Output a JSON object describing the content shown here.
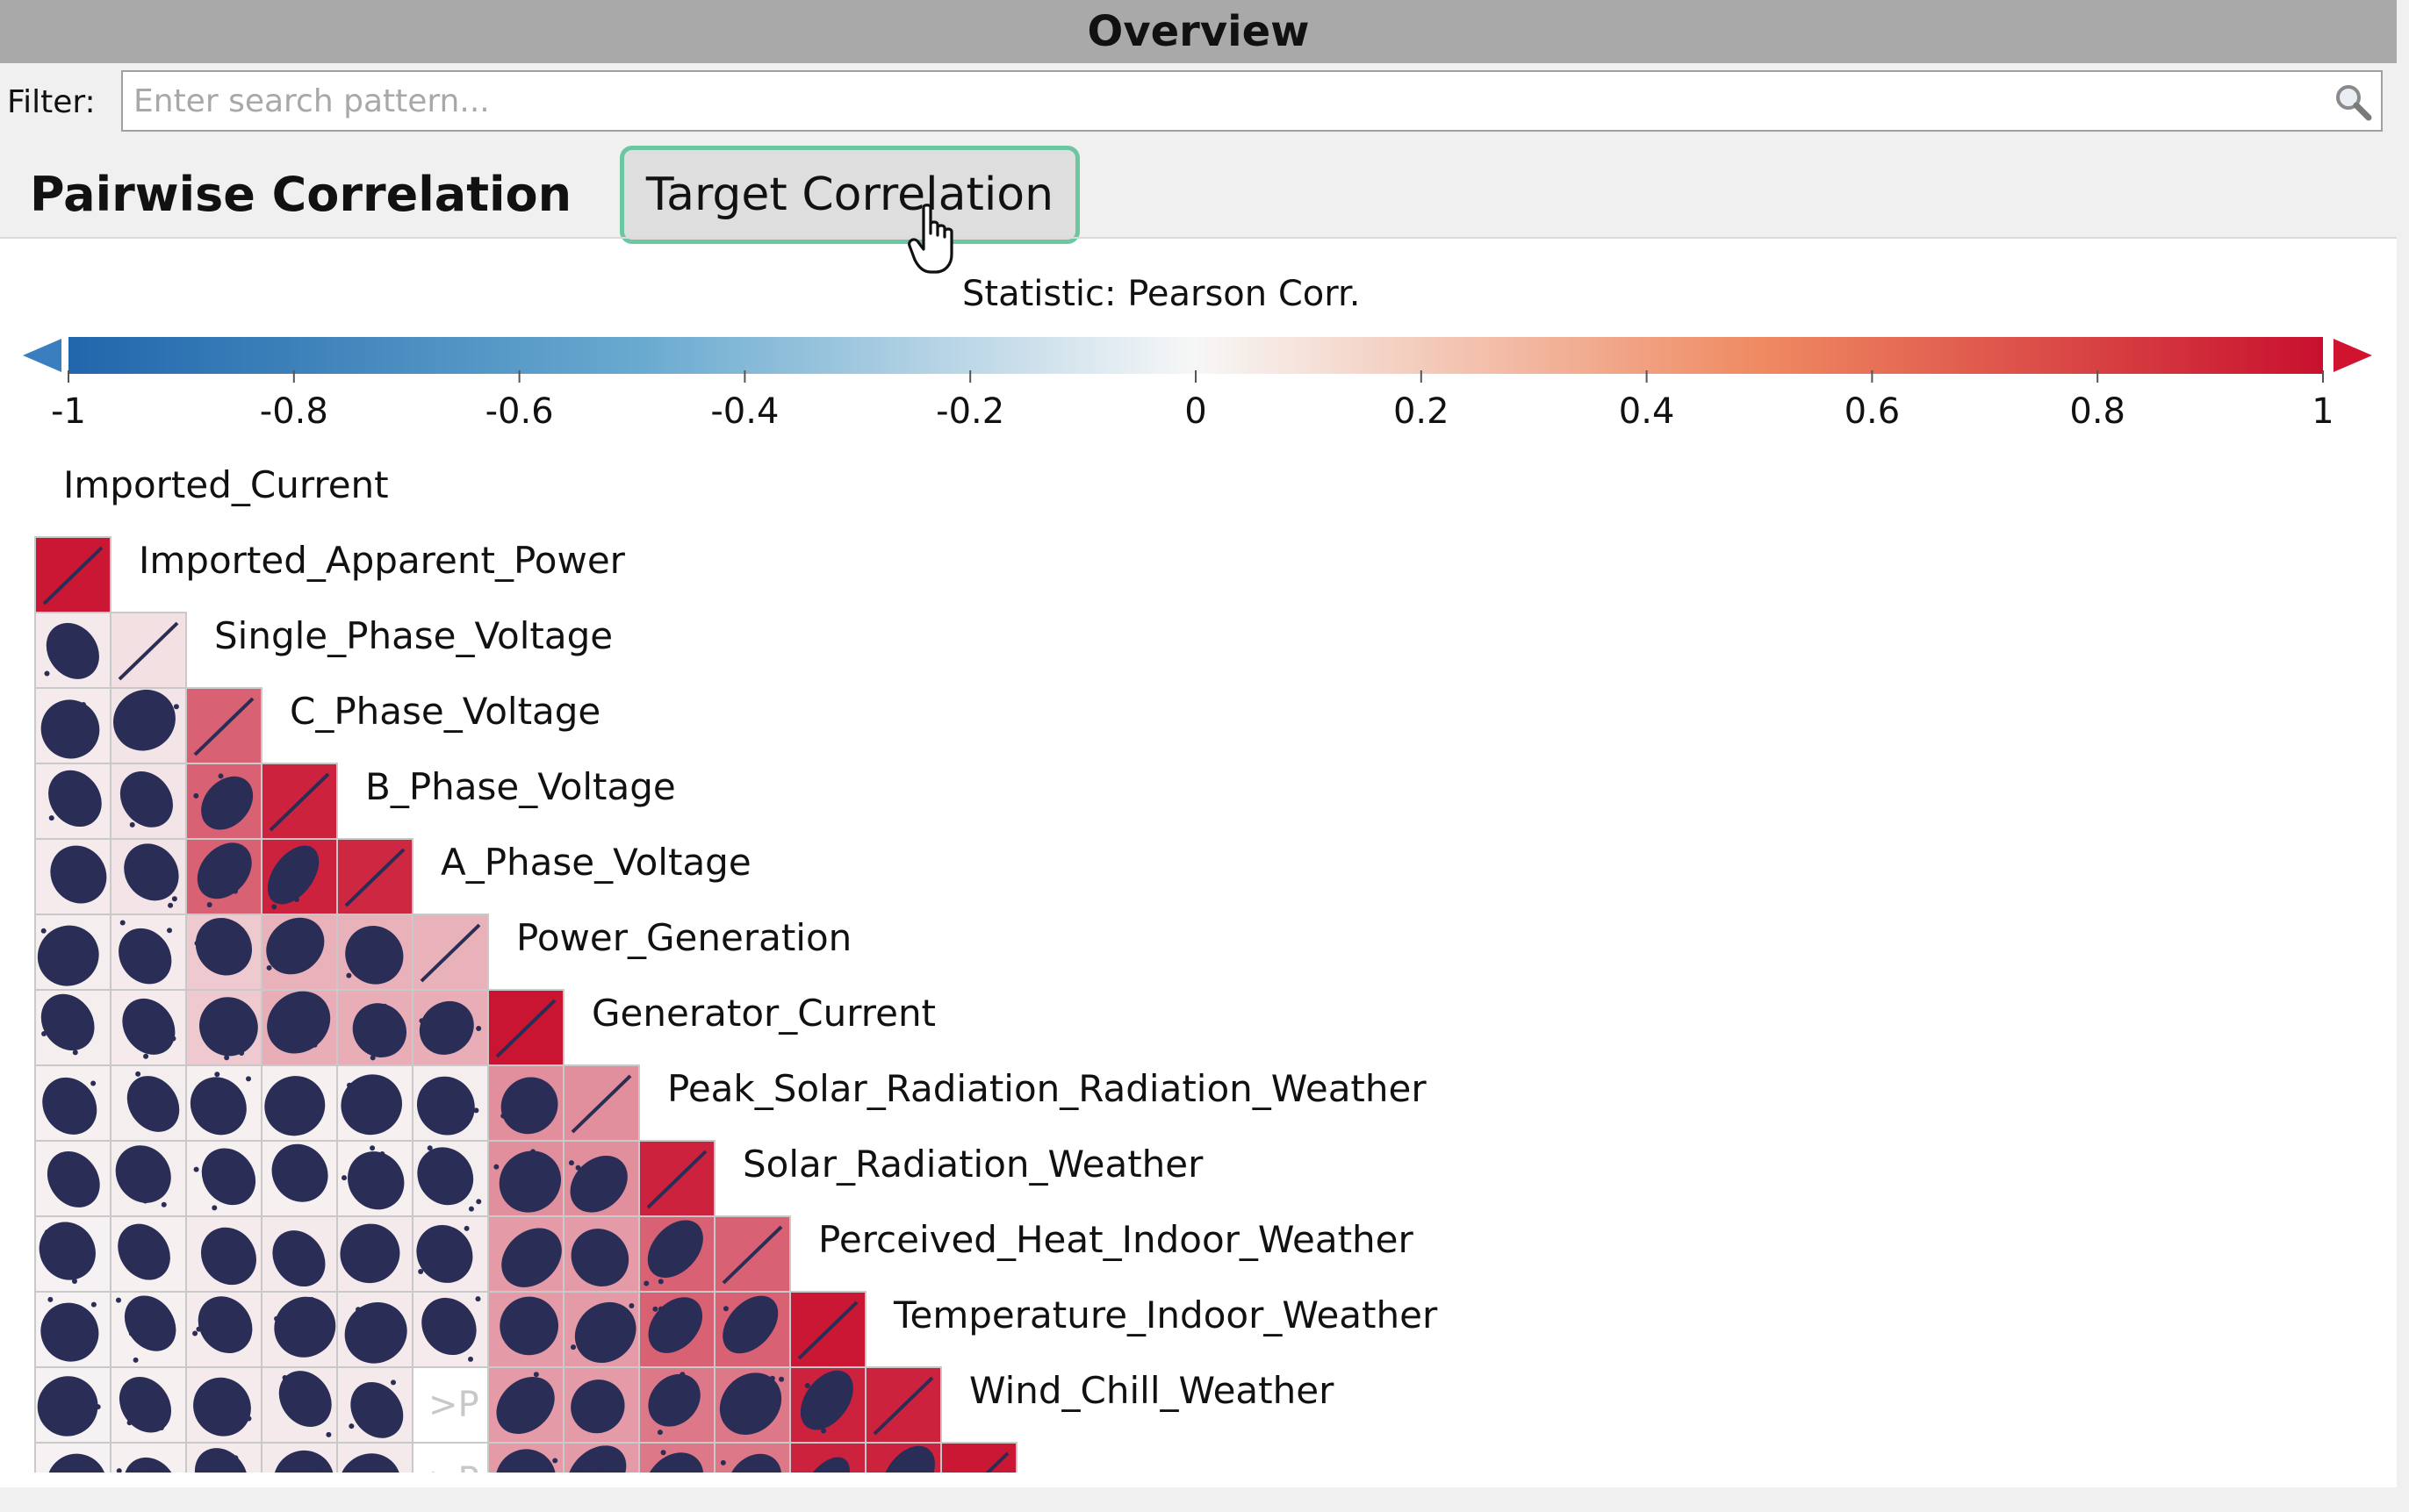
{
  "window": {
    "title": "Overview"
  },
  "filter": {
    "label": "Filter:",
    "placeholder": "Enter search pattern..."
  },
  "tabs": {
    "pairwise": "Pairwise Correlation",
    "target": "Target Correlation",
    "active": "Target Correlation"
  },
  "statistic_label": "Statistic: Pearson Corr.",
  "colorbar": {
    "min": -1,
    "max": 1,
    "ticks": [
      "-1",
      "-0.8",
      "-0.6",
      "-0.4",
      "-0.2",
      "0",
      "0.2",
      "0.4",
      "0.6",
      "0.8",
      "1"
    ],
    "colors": {
      "negative": "#2166ac",
      "neutral": "#f7f7f7",
      "positive": "#c8102e"
    }
  },
  "variables": [
    "Imported_Current",
    "Imported_Apparent_Power",
    "Single_Phase_Voltage",
    "C_Phase_Voltage",
    "B_Phase_Voltage",
    "A_Phase_Voltage",
    "Power_Generation",
    "Generator_Current",
    "Peak_Solar_Radiation_Radiation_Weather",
    "Solar_Radiation_Weather",
    "Perceived_Heat_Indoor_Weather",
    "Temperature_Indoor_Weather",
    "Wind_Chill_Weather"
  ],
  "matrix_rows": [
    [
      0.97
    ],
    [
      0.06,
      0.1
    ],
    [
      0.05,
      0.08,
      0.65
    ],
    [
      0.05,
      0.08,
      0.65,
      0.92
    ],
    [
      0.05,
      0.08,
      0.65,
      0.92,
      0.9
    ],
    [
      0.04,
      0.05,
      0.2,
      0.3,
      0.3,
      0.3
    ],
    [
      0.04,
      0.05,
      0.2,
      0.32,
      0.32,
      0.32,
      0.98
    ],
    [
      0.03,
      0.04,
      0.03,
      0.03,
      0.03,
      0.04,
      0.45,
      0.45
    ],
    [
      0.03,
      0.04,
      0.03,
      0.03,
      0.03,
      0.04,
      0.45,
      0.45,
      0.92
    ],
    [
      0.02,
      0.03,
      0.05,
      0.06,
      0.06,
      0.05,
      0.4,
      0.4,
      0.65,
      0.65
    ],
    [
      0.02,
      0.03,
      0.05,
      0.06,
      0.06,
      0.05,
      0.4,
      0.4,
      0.65,
      0.65,
      0.97
    ],
    [
      0.02,
      0.03,
      0.05,
      0.06,
      0.06,
      null,
      0.4,
      0.4,
      0.55,
      0.55,
      0.92,
      0.92
    ],
    [
      0.02,
      0.03,
      0.05,
      0.06,
      0.06,
      null,
      0.4,
      0.4,
      0.55,
      0.55,
      0.92,
      0.92,
      0.97
    ]
  ],
  "masked_cell_text": ">P"
}
